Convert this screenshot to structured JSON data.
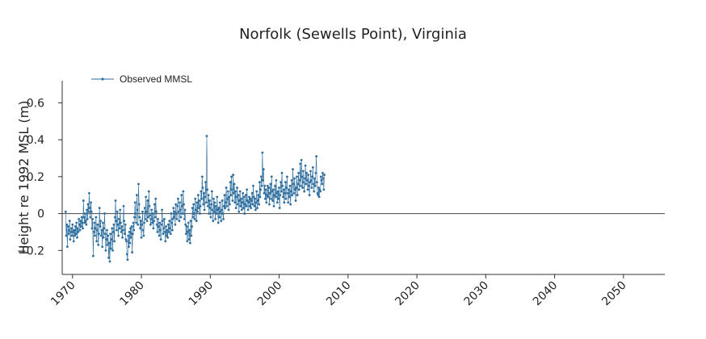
{
  "chart_data": {
    "type": "line",
    "title": "Norfolk (Sewells Point), Virginia",
    "xlabel": "",
    "ylabel": "Height re 1992 MSL (m)",
    "xlim": [
      1968.5,
      2056
    ],
    "ylim": [
      -0.33,
      0.72
    ],
    "x_ticks": [
      1970,
      1980,
      1990,
      2000,
      2010,
      2020,
      2030,
      2040,
      2050
    ],
    "y_ticks": [
      -0.2,
      0,
      0.2,
      0.4,
      0.6
    ],
    "y_tick_labels": [
      "−0.2",
      "0",
      "0.2",
      "0.4",
      "0.6"
    ],
    "grid": false,
    "zero_line": true,
    "legend": {
      "position": "top-left",
      "entries": [
        "Observed MMSL"
      ]
    },
    "colors": {
      "series": "#2e6e9e",
      "axis": "#333333",
      "zero_line": "#444444"
    },
    "series": [
      {
        "name": "Observed MMSL",
        "x_start": 1969.0,
        "x_step_years": 0.0833,
        "values": [
          0.01,
          -0.12,
          -0.06,
          -0.18,
          -0.07,
          -0.11,
          -0.09,
          -0.04,
          -0.14,
          -0.1,
          -0.08,
          -0.12,
          -0.06,
          -0.1,
          -0.15,
          -0.09,
          -0.12,
          -0.07,
          -0.11,
          -0.05,
          -0.13,
          -0.08,
          -0.1,
          -0.03,
          -0.06,
          -0.09,
          -0.04,
          -0.07,
          -0.02,
          -0.05,
          -0.08,
          0.07,
          -0.02,
          -0.05,
          0.0,
          -0.04,
          -0.06,
          0.02,
          -0.03,
          0.05,
          0.01,
          0.11,
          0.03,
          -0.02,
          0.06,
          0.01,
          -0.08,
          -0.03,
          -0.23,
          -0.1,
          -0.05,
          -0.12,
          -0.08,
          -0.02,
          -0.15,
          -0.09,
          -0.06,
          -0.17,
          -0.11,
          0.03,
          -0.07,
          -0.04,
          -0.12,
          -0.09,
          -0.18,
          -0.05,
          -0.13,
          -0.08,
          0.0,
          -0.11,
          -0.2,
          -0.14,
          -0.09,
          -0.17,
          -0.12,
          -0.24,
          -0.16,
          -0.26,
          -0.11,
          -0.19,
          -0.14,
          -0.08,
          -0.2,
          -0.1,
          -0.06,
          -0.15,
          -0.02,
          0.07,
          -0.04,
          -0.09,
          0.01,
          -0.06,
          -0.12,
          -0.03,
          -0.08,
          0.02,
          -0.05,
          -0.1,
          -0.07,
          -0.13,
          -0.09,
          0.04,
          -0.04,
          -0.11,
          -0.06,
          -0.14,
          -0.15,
          -0.22,
          -0.25,
          -0.12,
          -0.18,
          -0.1,
          -0.16,
          -0.08,
          -0.13,
          -0.07,
          -0.21,
          -0.11,
          -0.05,
          -0.09,
          -0.02,
          0.06,
          0.0,
          -0.05,
          0.1,
          0.02,
          -0.06,
          0.16,
          0.05,
          -0.02,
          -0.08,
          -0.04,
          -0.13,
          -0.06,
          0.01,
          -0.09,
          -0.12,
          -0.05,
          0.03,
          -0.03,
          0.09,
          0.01,
          -0.04,
          0.07,
          -0.02,
          0.12,
          0.04,
          -0.01,
          -0.06,
          -0.03,
          0.02,
          -0.05,
          0.0,
          -0.08,
          -0.04,
          0.05,
          -0.02,
          0.08,
          0.01,
          -0.06,
          -0.1,
          -0.03,
          -0.07,
          -0.12,
          -0.05,
          -0.09,
          -0.14,
          -0.06,
          0.02,
          -0.04,
          -0.11,
          -0.08,
          -0.03,
          -0.1,
          -0.15,
          -0.07,
          -0.12,
          -0.09,
          -0.13,
          -0.06,
          -0.1,
          -0.04,
          -0.08,
          -0.11,
          0.0,
          -0.05,
          -0.09,
          -0.03,
          0.03,
          -0.02,
          0.01,
          -0.06,
          0.05,
          0.0,
          -0.03,
          0.04,
          0.08,
          0.01,
          -0.04,
          0.06,
          0.02,
          -0.02,
          0.1,
          0.04,
          0.0,
          0.12,
          0.05,
          -0.03,
          0.02,
          -0.06,
          -0.11,
          -0.07,
          -0.15,
          -0.1,
          -0.05,
          -0.14,
          -0.09,
          -0.16,
          -0.04,
          -0.12,
          -0.07,
          0.03,
          -0.02,
          0.05,
          0.0,
          -0.03,
          0.08,
          0.02,
          -0.04,
          0.06,
          0.01,
          0.1,
          0.03,
          0.07,
          0.0,
          0.04,
          0.12,
          0.08,
          0.2,
          0.14,
          0.05,
          0.11,
          0.02,
          0.09,
          0.17,
          0.06,
          0.42,
          0.13,
          0.04,
          0.1,
          0.0,
          0.07,
          0.03,
          -0.02,
          0.05,
          0.12,
          0.02,
          -0.04,
          0.08,
          0.01,
          0.06,
          -0.03,
          0.04,
          0.0,
          0.09,
          0.02,
          -0.05,
          0.03,
          -0.02,
          0.06,
          0.01,
          -0.04,
          0.02,
          0.07,
          0.0,
          -0.03,
          0.04,
          0.1,
          0.03,
          0.06,
          0.14,
          0.04,
          0.08,
          0.12,
          0.02,
          0.09,
          0.05,
          0.17,
          0.1,
          0.2,
          0.13,
          0.07,
          0.21,
          0.11,
          0.16,
          0.06,
          0.12,
          0.03,
          0.09,
          0.14,
          0.05,
          0.1,
          0.01,
          0.07,
          0.12,
          0.04,
          0.08,
          0.02,
          0.06,
          0.11,
          0.03,
          0.09,
          0.0,
          0.05,
          0.1,
          0.04,
          0.13,
          0.07,
          0.02,
          0.06,
          0.09,
          0.04,
          0.08,
          0.03,
          0.07,
          0.11,
          0.05,
          0.15,
          0.09,
          0.04,
          0.08,
          0.02,
          0.06,
          0.12,
          0.03,
          0.07,
          0.1,
          0.05,
          0.17,
          0.09,
          0.13,
          0.2,
          0.15,
          0.33,
          0.18,
          0.24,
          0.11,
          0.15,
          0.08,
          0.13,
          0.06,
          0.1,
          0.15,
          0.09,
          0.14,
          0.05,
          0.11,
          0.16,
          0.08,
          0.2,
          0.12,
          0.07,
          0.13,
          0.04,
          0.1,
          0.15,
          0.09,
          0.18,
          0.11,
          0.06,
          0.12,
          0.08,
          0.14,
          0.03,
          0.1,
          0.17,
          0.12,
          0.22,
          0.15,
          0.09,
          0.13,
          0.06,
          0.11,
          0.17,
          0.08,
          0.14,
          0.2,
          0.11,
          0.06,
          0.13,
          0.09,
          0.15,
          0.05,
          0.12,
          0.18,
          0.1,
          0.24,
          0.16,
          0.11,
          0.19,
          0.13,
          0.07,
          0.14,
          0.2,
          0.1,
          0.16,
          0.22,
          0.13,
          0.18,
          0.27,
          0.15,
          0.29,
          0.2,
          0.14,
          0.23,
          0.17,
          0.12,
          0.19,
          0.26,
          0.16,
          0.22,
          0.18,
          0.13,
          0.21,
          0.15,
          0.1,
          0.17,
          0.23,
          0.18,
          0.14,
          0.2,
          0.25,
          0.16,
          0.12,
          0.19,
          0.15,
          0.22,
          0.31,
          0.17,
          0.11,
          0.1,
          0.14,
          0.09,
          0.13,
          0.12,
          0.2,
          0.18,
          0.16,
          0.22,
          0.19,
          0.13,
          0.21
        ]
      }
    ]
  }
}
